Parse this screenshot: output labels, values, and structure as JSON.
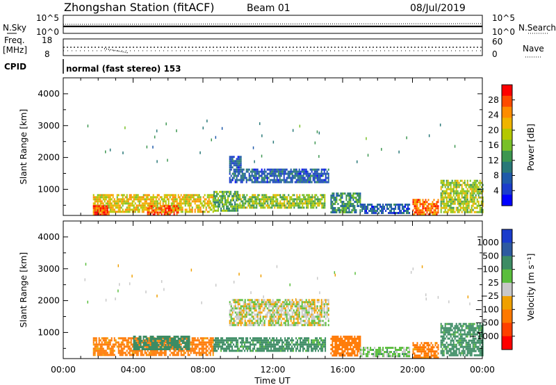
{
  "header": {
    "station": "Zhongshan Station (fitACF)",
    "beam": "Beam 01",
    "date": "08/Jul/2019"
  },
  "panels": {
    "nsky_label": "N.Sky",
    "nsky_ticks": [
      "10^5",
      "10^0"
    ],
    "nsearch_label": "N.Search",
    "nsearch_ticks": [
      "10^5",
      "10^0"
    ],
    "freq_label_1": "Freq.",
    "freq_label_2": "[MHz]",
    "freq_ticks": [
      "18",
      "8"
    ],
    "nave_label": "Nave",
    "nave_ticks": [
      "60",
      "0"
    ],
    "cpid_label": "CPID",
    "cpid_text": "normal (fast stereo) 153"
  },
  "x_axis": {
    "label": "Time UT",
    "ticks": [
      "00:00",
      "04:00",
      "08:00",
      "12:00",
      "16:00",
      "20:00",
      "00:00"
    ]
  },
  "y_axis": {
    "label": "Slant Range [km]",
    "ticks": [
      "4000",
      "3000",
      "2000",
      "1000"
    ]
  },
  "colorbars": {
    "power": {
      "label": "Power [dB]",
      "ticks": [
        "28",
        "24",
        "20",
        "16",
        "12",
        "8",
        "4"
      ],
      "colors": [
        "#ff0000",
        "#ff4a00",
        "#ff8c00",
        "#f0b400",
        "#b4c800",
        "#78c028",
        "#3c9650",
        "#287878",
        "#1e5aaa",
        "#1a3ccc",
        "#0000ff"
      ]
    },
    "velocity": {
      "label": "Velocity [m s⁻¹]",
      "ticks": [
        "1000",
        "500",
        "100",
        "25",
        "−25",
        "−100",
        "−500",
        "−1000"
      ],
      "colors": [
        "#1a3ccc",
        "#2d5aa0",
        "#3c8c64",
        "#5abe3c",
        "#c8c8c8",
        "#f0a000",
        "#ff7800",
        "#ff4000",
        "#ff0000"
      ]
    }
  },
  "chart_data": [
    {
      "type": "heatmap",
      "name": "power",
      "x_range_hours": [
        0,
        24
      ],
      "y_range_km": [
        180,
        4500
      ],
      "clim": [
        0,
        30
      ],
      "regions": [
        {
          "t": [
            1.7,
            8.6
          ],
          "r": [
            300,
            850
          ],
          "v": 20
        },
        {
          "t": [
            1.7,
            2.6
          ],
          "r": [
            200,
            500
          ],
          "v": 27
        },
        {
          "t": [
            4.8,
            6.6
          ],
          "r": [
            200,
            500
          ],
          "v": 27
        },
        {
          "t": [
            8.6,
            10.0
          ],
          "r": [
            300,
            950
          ],
          "v": 13
        },
        {
          "t": [
            9.5,
            15.2
          ],
          "r": [
            1250,
            1650
          ],
          "v": 6
        },
        {
          "t": [
            9.5,
            10.2
          ],
          "r": [
            1700,
            2050
          ],
          "v": 6
        },
        {
          "t": [
            10.0,
            15.0
          ],
          "r": [
            450,
            850
          ],
          "v": 16
        },
        {
          "t": [
            15.3,
            17.0
          ],
          "r": [
            300,
            900
          ],
          "v": 11
        },
        {
          "t": [
            17.0,
            19.8
          ],
          "r": [
            250,
            550
          ],
          "v": 6
        },
        {
          "t": [
            20.0,
            21.5
          ],
          "r": [
            200,
            700
          ],
          "v": 25
        },
        {
          "t": [
            21.6,
            24.0
          ],
          "r": [
            300,
            1300
          ],
          "v": 17
        }
      ]
    },
    {
      "type": "heatmap",
      "name": "velocity",
      "x_range_hours": [
        0,
        24
      ],
      "y_range_km": [
        180,
        4500
      ],
      "clim": [
        -1000,
        1000
      ],
      "regions": [
        {
          "t": [
            1.7,
            8.6
          ],
          "r": [
            300,
            850
          ],
          "v": -150
        },
        {
          "t": [
            4.0,
            7.2
          ],
          "r": [
            500,
            900
          ],
          "v": 200
        },
        {
          "t": [
            8.6,
            15.0
          ],
          "r": [
            450,
            850
          ],
          "v": 150
        },
        {
          "t": [
            9.5,
            15.2
          ],
          "r": [
            1250,
            2050
          ],
          "v": 0
        },
        {
          "t": [
            15.3,
            17.0
          ],
          "r": [
            300,
            900
          ],
          "v": -200
        },
        {
          "t": [
            17.0,
            19.8
          ],
          "r": [
            250,
            550
          ],
          "v": 50
        },
        {
          "t": [
            20.0,
            21.5
          ],
          "r": [
            200,
            700
          ],
          "v": -150
        },
        {
          "t": [
            21.6,
            24.0
          ],
          "r": [
            300,
            1300
          ],
          "v": 150
        }
      ]
    }
  ]
}
